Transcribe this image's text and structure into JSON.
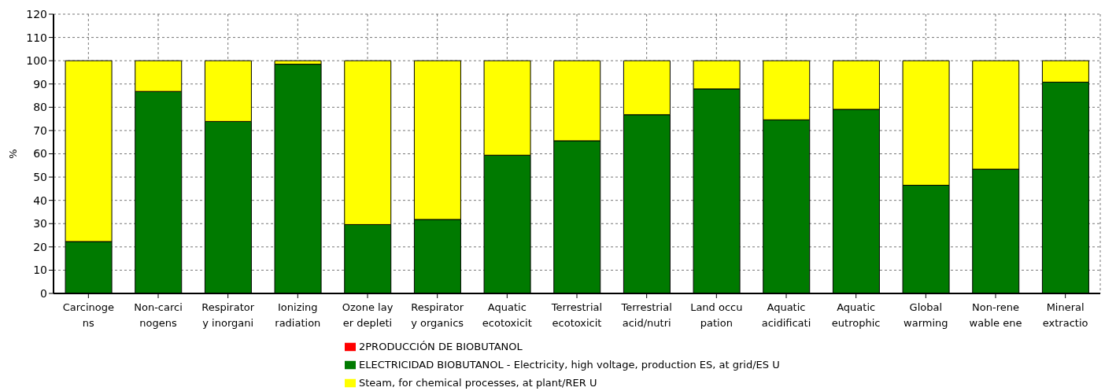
{
  "chart_data": {
    "type": "bar",
    "stacked": true,
    "ylabel": "%",
    "categories": [
      "Carcinoge\nns",
      "Non-carci\nnogens",
      "Respirator\ny inorgani",
      "Ionizing\nradiation",
      "Ozone lay\ner depleti",
      "Respirator\ny organics",
      "Aquatic\necotoxicit",
      "Terrestrial\necotoxicit",
      "Terrestrial\nacid/nutri",
      "Land occu\npation",
      "Aquatic\nacidificati",
      "Aquatic\neutrophic",
      "Global\nwarming",
      "Non-rene\nwable ene",
      "Mineral\nextractio"
    ],
    "series": [
      {
        "name": "2PRODUCCIÓN DE BIOBUTANOL",
        "color": "#ff0000",
        "values": [
          0,
          0,
          0,
          0,
          0,
          0,
          0,
          0,
          0,
          0,
          0,
          0,
          0,
          0,
          0
        ]
      },
      {
        "name": "ELECTRICIDAD BIOBUTANOL - Electricity, high voltage, production ES, at grid/ES U",
        "color": "#007a00",
        "values": [
          22.3,
          86.8,
          73.9,
          98.5,
          29.6,
          31.8,
          59.4,
          65.6,
          76.8,
          87.9,
          74.6,
          79.1,
          46.5,
          53.4,
          90.8
        ]
      },
      {
        "name": "Steam, for chemical processes, at plant/RER U",
        "color": "#ffff00",
        "values": [
          77.7,
          13.2,
          26.1,
          1.5,
          70.4,
          68.2,
          40.6,
          34.4,
          23.2,
          12.1,
          25.4,
          20.9,
          53.5,
          46.6,
          9.2
        ]
      }
    ],
    "ylim": [
      0,
      120
    ],
    "yticks": [
      0,
      10,
      20,
      30,
      40,
      50,
      60,
      70,
      80,
      90,
      100,
      110,
      120
    ],
    "grid": true,
    "legend": "bottom"
  }
}
